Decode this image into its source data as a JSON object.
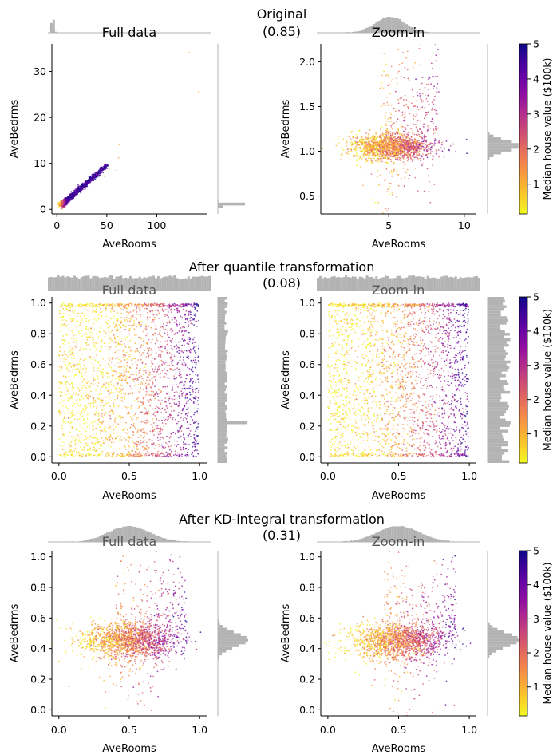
{
  "figure": {
    "colormap": "plasma (reversed)",
    "marginal_hist_color": "#b3b3b3",
    "sections": [
      {
        "key": "original",
        "title": "Original",
        "score": "(0.85)",
        "panels": [
          {
            "key": "full",
            "title": "Full data",
            "title_muted": false,
            "chart_data": {
              "type": "scatter",
              "title": "Full data",
              "xlabel": "AveRooms",
              "ylabel": "AveBedrms",
              "xlim": [
                -5,
                150
              ],
              "ylim": [
                -1,
                36
              ],
              "xticks": [
                0,
                50,
                100
              ],
              "yticks": [
                0,
                10,
                20,
                30
              ],
              "color_by": "Median house value ($100k)",
              "distribution": "skewed-cluster",
              "cluster": {
                "x_center": 5.4,
                "y_center": 1.1
              },
              "outliers": [
                [
                  141.9,
                  25.6
                ],
                [
                  132.5,
                  34.1
                ],
                [
                  62.4,
                  14.1
                ],
                [
                  61.8,
                  11.2
                ],
                [
                  52.7,
                  8.9
                ],
                [
                  59.9,
                  8.5
                ],
                [
                  47.5,
                  7.2
                ]
              ],
              "marginal_top": "spike at low AveRooms",
              "marginal_right": "spike at AveBedrms ≈ 1"
            }
          },
          {
            "key": "zoom",
            "title": "Zoom-in",
            "title_muted": false,
            "chart_data": {
              "type": "scatter",
              "title": "Zoom-in",
              "xlabel": "AveRooms",
              "ylabel": "AveBedrms",
              "xlim": [
                0.5,
                10.8
              ],
              "ylim": [
                0.3,
                2.2
              ],
              "xticks": [
                5,
                10
              ],
              "yticks": [
                0.5,
                1.0,
                1.5,
                2.0
              ],
              "color_by": "Median house value ($100k)",
              "distribution": "cluster",
              "cluster": {
                "x_center": 5.2,
                "y_center": 1.05,
                "x_spread": 1.3,
                "y_spread": 0.07
              },
              "marginal_top": "unimodal around AveRooms ≈ 5",
              "marginal_right": "peak at AveBedrms ≈ 1.05"
            }
          }
        ]
      },
      {
        "key": "quantile",
        "title": "After quantile transformation",
        "score": "(0.08)",
        "panels": [
          {
            "key": "full",
            "title": "Full data",
            "title_muted": true,
            "chart_data": {
              "type": "scatter",
              "title": "Full data",
              "xlabel": "AveRooms",
              "ylabel": "AveBedrms",
              "xlim": [
                -0.05,
                1.05
              ],
              "ylim": [
                -0.04,
                1.04
              ],
              "xticks": [
                0.0,
                0.5,
                1.0
              ],
              "yticks": [
                0.0,
                0.2,
                0.4,
                0.6,
                0.8,
                1.0
              ],
              "color_by": "Median house value ($100k)",
              "distribution": "uniform",
              "marginal_top": "uniform",
              "marginal_right": "uniform with spike near 0.22"
            }
          },
          {
            "key": "zoom",
            "title": "Zoom-in",
            "title_muted": true,
            "chart_data": {
              "type": "scatter",
              "title": "Zoom-in",
              "xlabel": "AveRooms",
              "ylabel": "AveBedrms",
              "xlim": [
                -0.05,
                1.05
              ],
              "ylim": [
                -0.04,
                1.04
              ],
              "xticks": [
                0.0,
                0.5,
                1.0
              ],
              "yticks": [
                0.0,
                0.2,
                0.4,
                0.6,
                0.8,
                1.0
              ],
              "color_by": "Median house value ($100k)",
              "distribution": "uniform",
              "marginal_top": "uniform",
              "marginal_right": "uniform"
            }
          }
        ]
      },
      {
        "key": "kd",
        "title": "After KD-integral transformation",
        "score": "(0.31)",
        "panels": [
          {
            "key": "full",
            "title": "Full data",
            "title_muted": true,
            "chart_data": {
              "type": "scatter",
              "title": "Full data",
              "xlabel": "AveRooms",
              "ylabel": "AveBedrms",
              "xlim": [
                -0.05,
                1.05
              ],
              "ylim": [
                -0.04,
                1.04
              ],
              "xticks": [
                0.0,
                0.5,
                1.0
              ],
              "yticks": [
                0.0,
                0.2,
                0.4,
                0.6,
                0.8,
                1.0
              ],
              "color_by": "Median house value ($100k)",
              "distribution": "cluster",
              "cluster": {
                "x_center": 0.5,
                "y_center": 0.45,
                "x_spread": 0.17,
                "y_spread": 0.06
              },
              "marginal_top": "unimodal around 0.5",
              "marginal_right": "peak at 0.45"
            }
          },
          {
            "key": "zoom",
            "title": "Zoom-in",
            "title_muted": true,
            "chart_data": {
              "type": "scatter",
              "title": "Zoom-in",
              "xlabel": "AveRooms",
              "ylabel": "AveBedrms",
              "xlim": [
                -0.05,
                1.05
              ],
              "ylim": [
                -0.04,
                1.04
              ],
              "xticks": [
                0.0,
                0.5,
                1.0
              ],
              "yticks": [
                0.0,
                0.2,
                0.4,
                0.6,
                0.8,
                1.0
              ],
              "color_by": "Median house value ($100k)",
              "distribution": "cluster",
              "cluster": {
                "x_center": 0.5,
                "y_center": 0.45,
                "x_spread": 0.17,
                "y_spread": 0.06
              },
              "marginal_top": "unimodal around 0.5",
              "marginal_right": "peak at 0.45"
            }
          }
        ]
      }
    ],
    "colorbar": {
      "label": "Median house value ($100k)",
      "ticks": [
        1,
        2,
        3,
        4,
        5
      ],
      "range": [
        0.15,
        5.0
      ]
    }
  }
}
